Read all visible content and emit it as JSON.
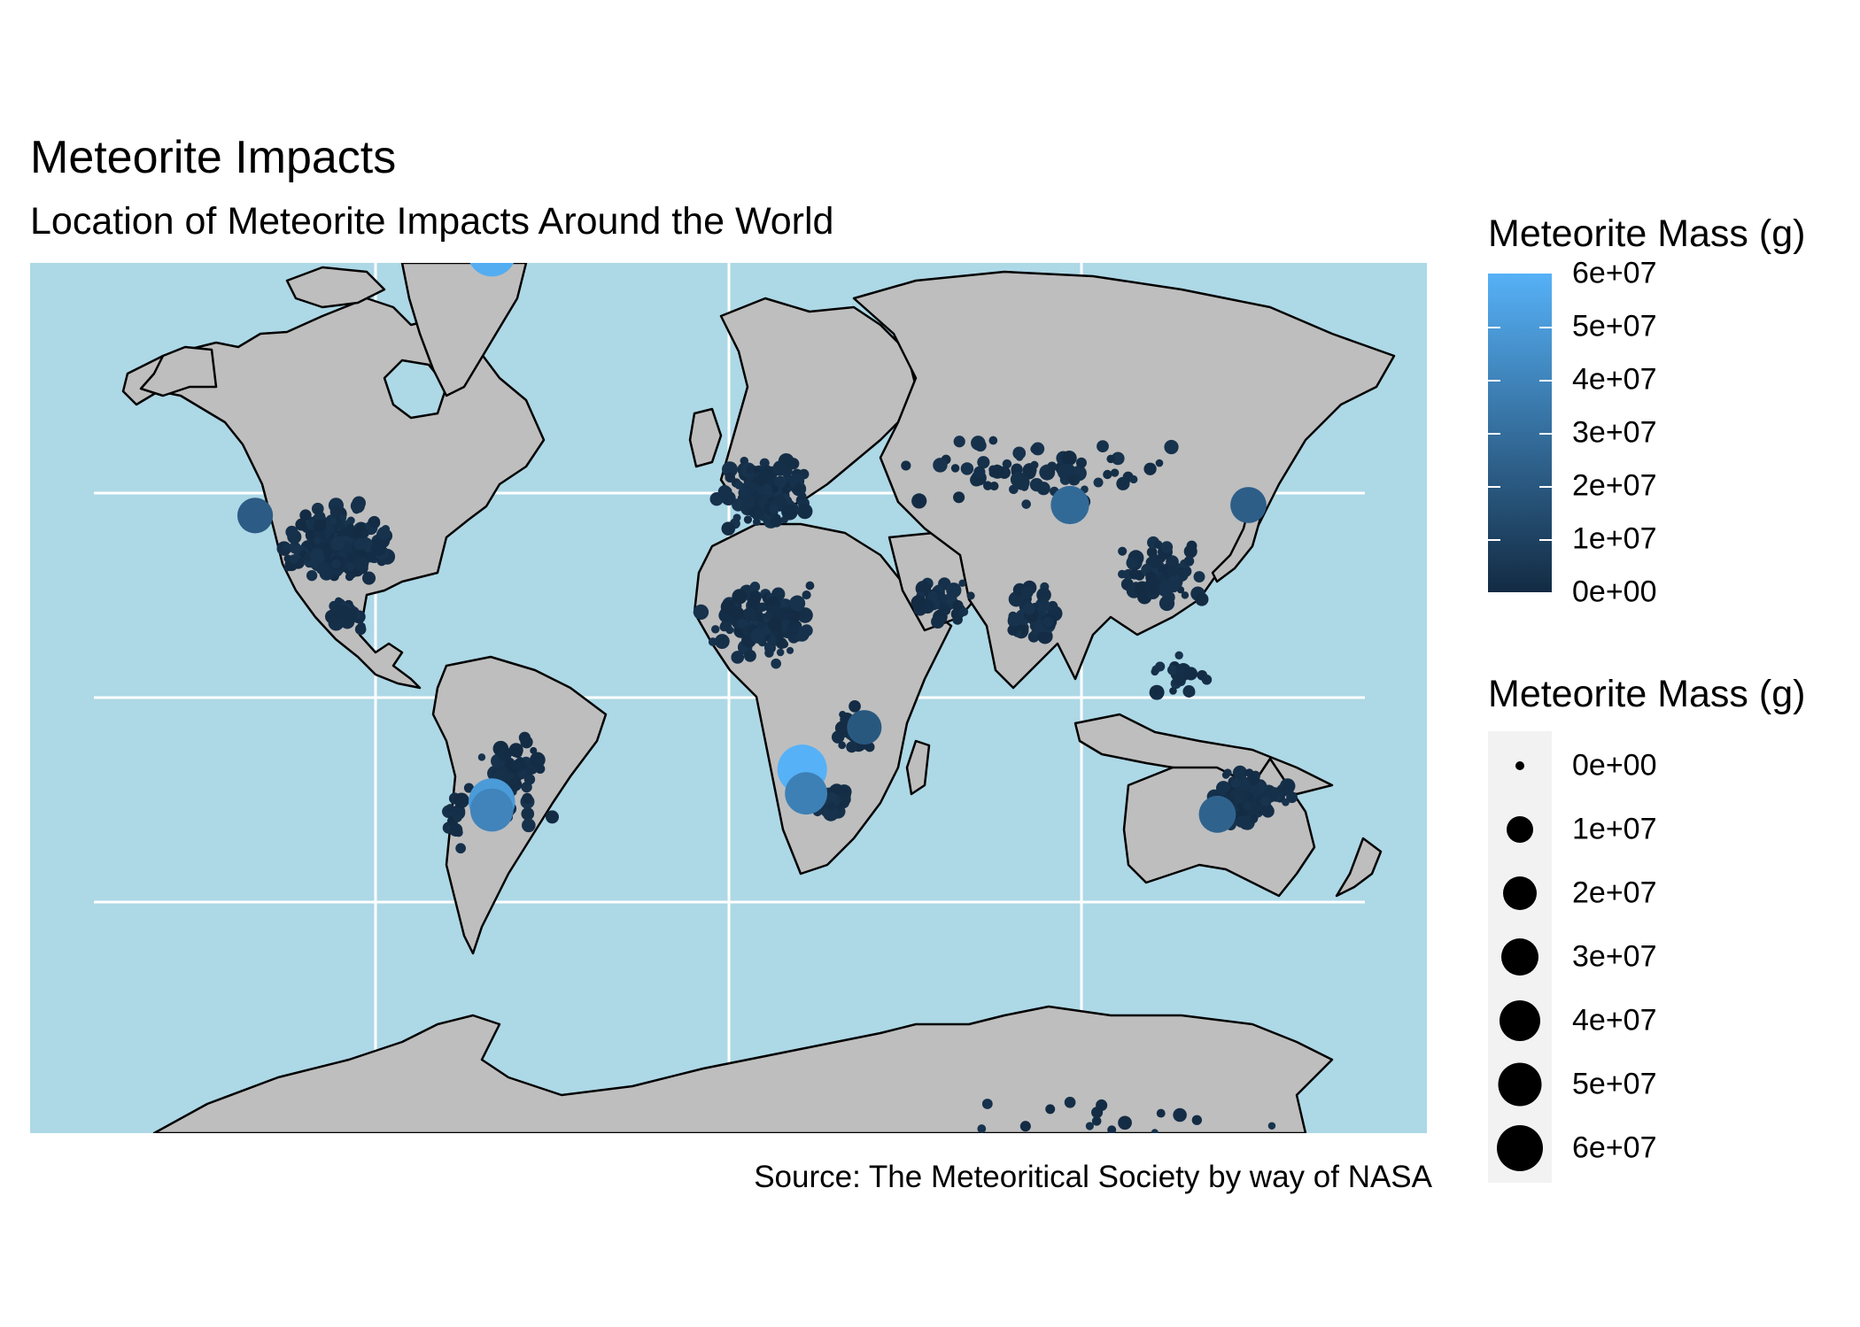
{
  "plot": {
    "title": "Meteorite Impacts",
    "subtitle": "Location of Meteorite Impacts Around the World",
    "caption": "Source: The Meteoritical Society by way of NASA"
  },
  "colors": {
    "ocean": "#add8e6",
    "land": "#bebebe",
    "border": "#000000",
    "grid": "#ffffff",
    "low": "#132B43",
    "high": "#56B1F7"
  },
  "legend_color": {
    "title": "Meteorite Mass (g)",
    "labels": [
      "6e+07",
      "5e+07",
      "4e+07",
      "3e+07",
      "2e+07",
      "1e+07",
      "0e+00"
    ]
  },
  "legend_size": {
    "title": "Meteorite Mass (g)",
    "labels": [
      "0e+00",
      "1e+07",
      "2e+07",
      "3e+07",
      "4e+07",
      "5e+07",
      "6e+07"
    ]
  },
  "chart_data": {
    "type": "scatter",
    "projection": "mercator",
    "x_range": [
      -180,
      180
    ],
    "gridlines": true,
    "point_sets": [
      {
        "lon": -100,
        "lat": 38,
        "spread": [
          18,
          10
        ],
        "count": 240
      },
      {
        "lon": 10,
        "lat": 48,
        "spread": [
          15,
          8
        ],
        "count": 150
      },
      {
        "lon": 10,
        "lat": 20,
        "spread": [
          18,
          12
        ],
        "count": 130
      },
      {
        "lon": 55,
        "lat": 25,
        "spread": [
          10,
          8
        ],
        "count": 40
      },
      {
        "lon": 78,
        "lat": 22,
        "spread": [
          9,
          9
        ],
        "count": 60
      },
      {
        "lon": 112,
        "lat": 32,
        "spread": [
          14,
          10
        ],
        "count": 70
      },
      {
        "lon": 80,
        "lat": 52,
        "spread": [
          40,
          8
        ],
        "count": 70
      },
      {
        "lon": 134,
        "lat": -26,
        "spread": [
          13,
          8
        ],
        "count": 110
      },
      {
        "lon": -55,
        "lat": -22,
        "spread": [
          12,
          14
        ],
        "count": 70
      },
      {
        "lon": 26,
        "lat": -27,
        "spread": [
          6,
          4
        ],
        "count": 45
      },
      {
        "lon": 32,
        "lat": -10,
        "spread": [
          8,
          10
        ],
        "count": 25
      },
      {
        "lon": -99,
        "lat": 22,
        "spread": [
          6,
          5
        ],
        "count": 30
      },
      {
        "lon": 115,
        "lat": 5,
        "spread": [
          12,
          8
        ],
        "count": 20
      },
      {
        "lon": 100,
        "lat": -75,
        "spread": [
          60,
          3
        ],
        "count": 25
      },
      {
        "lon": -70,
        "lat": -30,
        "spread": [
          4,
          10
        ],
        "count": 15
      }
    ],
    "large_impacts": [
      {
        "lon": -61,
        "lat": 76,
        "mass": 58000000
      },
      {
        "lon": 19,
        "lat": -19,
        "mass": 60000000
      },
      {
        "lon": 20,
        "lat": -25,
        "mass": 38000000
      },
      {
        "lon": -61,
        "lat": -27,
        "mass": 50000000
      },
      {
        "lon": -61,
        "lat": -29,
        "mass": 40000000
      },
      {
        "lon": 88,
        "lat": 46,
        "mass": 28000000
      },
      {
        "lon": 134,
        "lat": 46,
        "mass": 23000000
      },
      {
        "lon": -122,
        "lat": 44,
        "mass": 22000000
      },
      {
        "lon": 35,
        "lat": -8,
        "mass": 20000000
      },
      {
        "lon": 126,
        "lat": -30,
        "mass": 25000000
      }
    ]
  }
}
